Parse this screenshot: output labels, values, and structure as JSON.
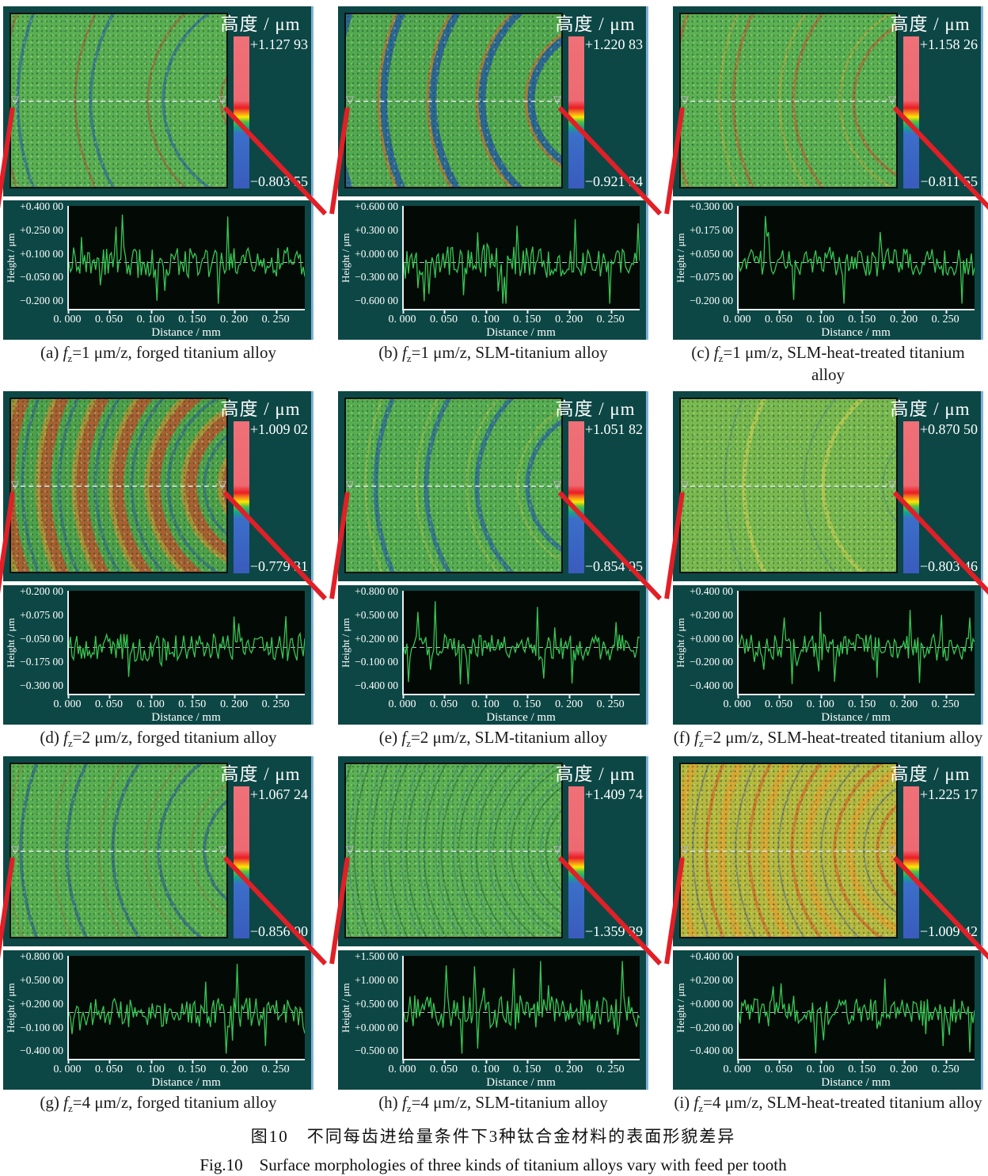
{
  "shared": {
    "colorbar_title": "高度 / μm",
    "xlabel": "Distance / mm",
    "ylabel": "Height / μm",
    "x_ticks": [
      "0. 000",
      "0. 050",
      "0. 100",
      "0. 150",
      "0. 200",
      "0. 250"
    ],
    "fz_italic": "f",
    "fz_sub": "z",
    "icons": {
      "profile_marker": "▽"
    },
    "colors": {
      "panel_background": "#0c4745",
      "plot_background": "#030a06",
      "profile_line": "#37c653",
      "leader_line": "#e11f26",
      "colorbar_top": "#ef7078",
      "colorbar_bottom": "#3a5bbd"
    }
  },
  "figure": {
    "caption_cn": "图10　不同每齿进给量条件下3种钛合金材料的表面形貌差异",
    "caption_en": "Fig.10　Surface morphologies of three kinds of titanium alloys vary with feed per tooth"
  },
  "panels": [
    {
      "label": "(a)",
      "caption_rest": "=1 μm/z, forged titanium alloy",
      "cb_max": "+1.127 93",
      "cb_min": "−0.803 55",
      "y_ticks": [
        "+0.400 00",
        "+0.250 00",
        "+0.100 00",
        "−0.050 00",
        "−0.200 00"
      ]
    },
    {
      "label": "(b)",
      "caption_rest": "=1 μm/z, SLM-titanium alloy",
      "cb_max": "+1.220 83",
      "cb_min": "−0.921 34",
      "y_ticks": [
        "+0.600 00",
        "+0.300 00",
        "+0.000 00",
        "−0.300 00",
        "−0.600 00"
      ]
    },
    {
      "label": "(c)",
      "caption_rest": "=1 μm/z, SLM-heat-treated titanium alloy",
      "cb_max": "+1.158 26",
      "cb_min": "−0.811 55",
      "y_ticks": [
        "+0.300 00",
        "+0.175 00",
        "+0.050 00",
        "−0.075 00",
        "−0.200 00"
      ]
    },
    {
      "label": "(d)",
      "caption_rest": "=2 μm/z, forged titanium alloy",
      "cb_max": "+1.009 02",
      "cb_min": "−0.779 31",
      "y_ticks": [
        "+0.200 00",
        "+0.075 00",
        "−0.050 00",
        "−0.175 00",
        "−0.300 00"
      ]
    },
    {
      "label": "(e)",
      "caption_rest": "=2 μm/z, SLM-titanium alloy",
      "cb_max": "+1.051 82",
      "cb_min": "−0.854 95",
      "y_ticks": [
        "+0.800 00",
        "+0.500 00",
        "+0.200 00",
        "−0.100 00",
        "−0.400 00"
      ]
    },
    {
      "label": "(f)",
      "caption_rest": "=2 μm/z, SLM-heat-treated titanium alloy",
      "cb_max": "+0.870 50",
      "cb_min": "−0.803 46",
      "y_ticks": [
        "+0.400 00",
        "+0.200 00",
        "+0.000 00",
        "−0.200 00",
        "−0.400 00"
      ]
    },
    {
      "label": "(g)",
      "caption_rest": "=4 μm/z, forged titanium alloy",
      "cb_max": "+1.067 24",
      "cb_min": "−0.856 00",
      "y_ticks": [
        "+0.800 00",
        "+0.500 00",
        "+0.200 00",
        "−0.100 00",
        "−0.400 00"
      ]
    },
    {
      "label": "(h)",
      "caption_rest": "=4 μm/z, SLM-titanium alloy",
      "cb_max": "+1.409 74",
      "cb_min": "−1.359 39",
      "y_ticks": [
        "+1.500 00",
        "+1.000 00",
        "+0.500 00",
        "+0.000 00",
        "−0.500 00"
      ]
    },
    {
      "label": "(i)",
      "caption_rest": "=4 μm/z, SLM-heat-treated titanium alloy",
      "cb_max": "+1.225 17",
      "cb_min": "−1.009 42",
      "y_ticks": [
        "+0.400 00",
        "+0.200 00",
        "+0.000 00",
        "−0.200 00",
        "−0.400 00"
      ]
    }
  ]
}
